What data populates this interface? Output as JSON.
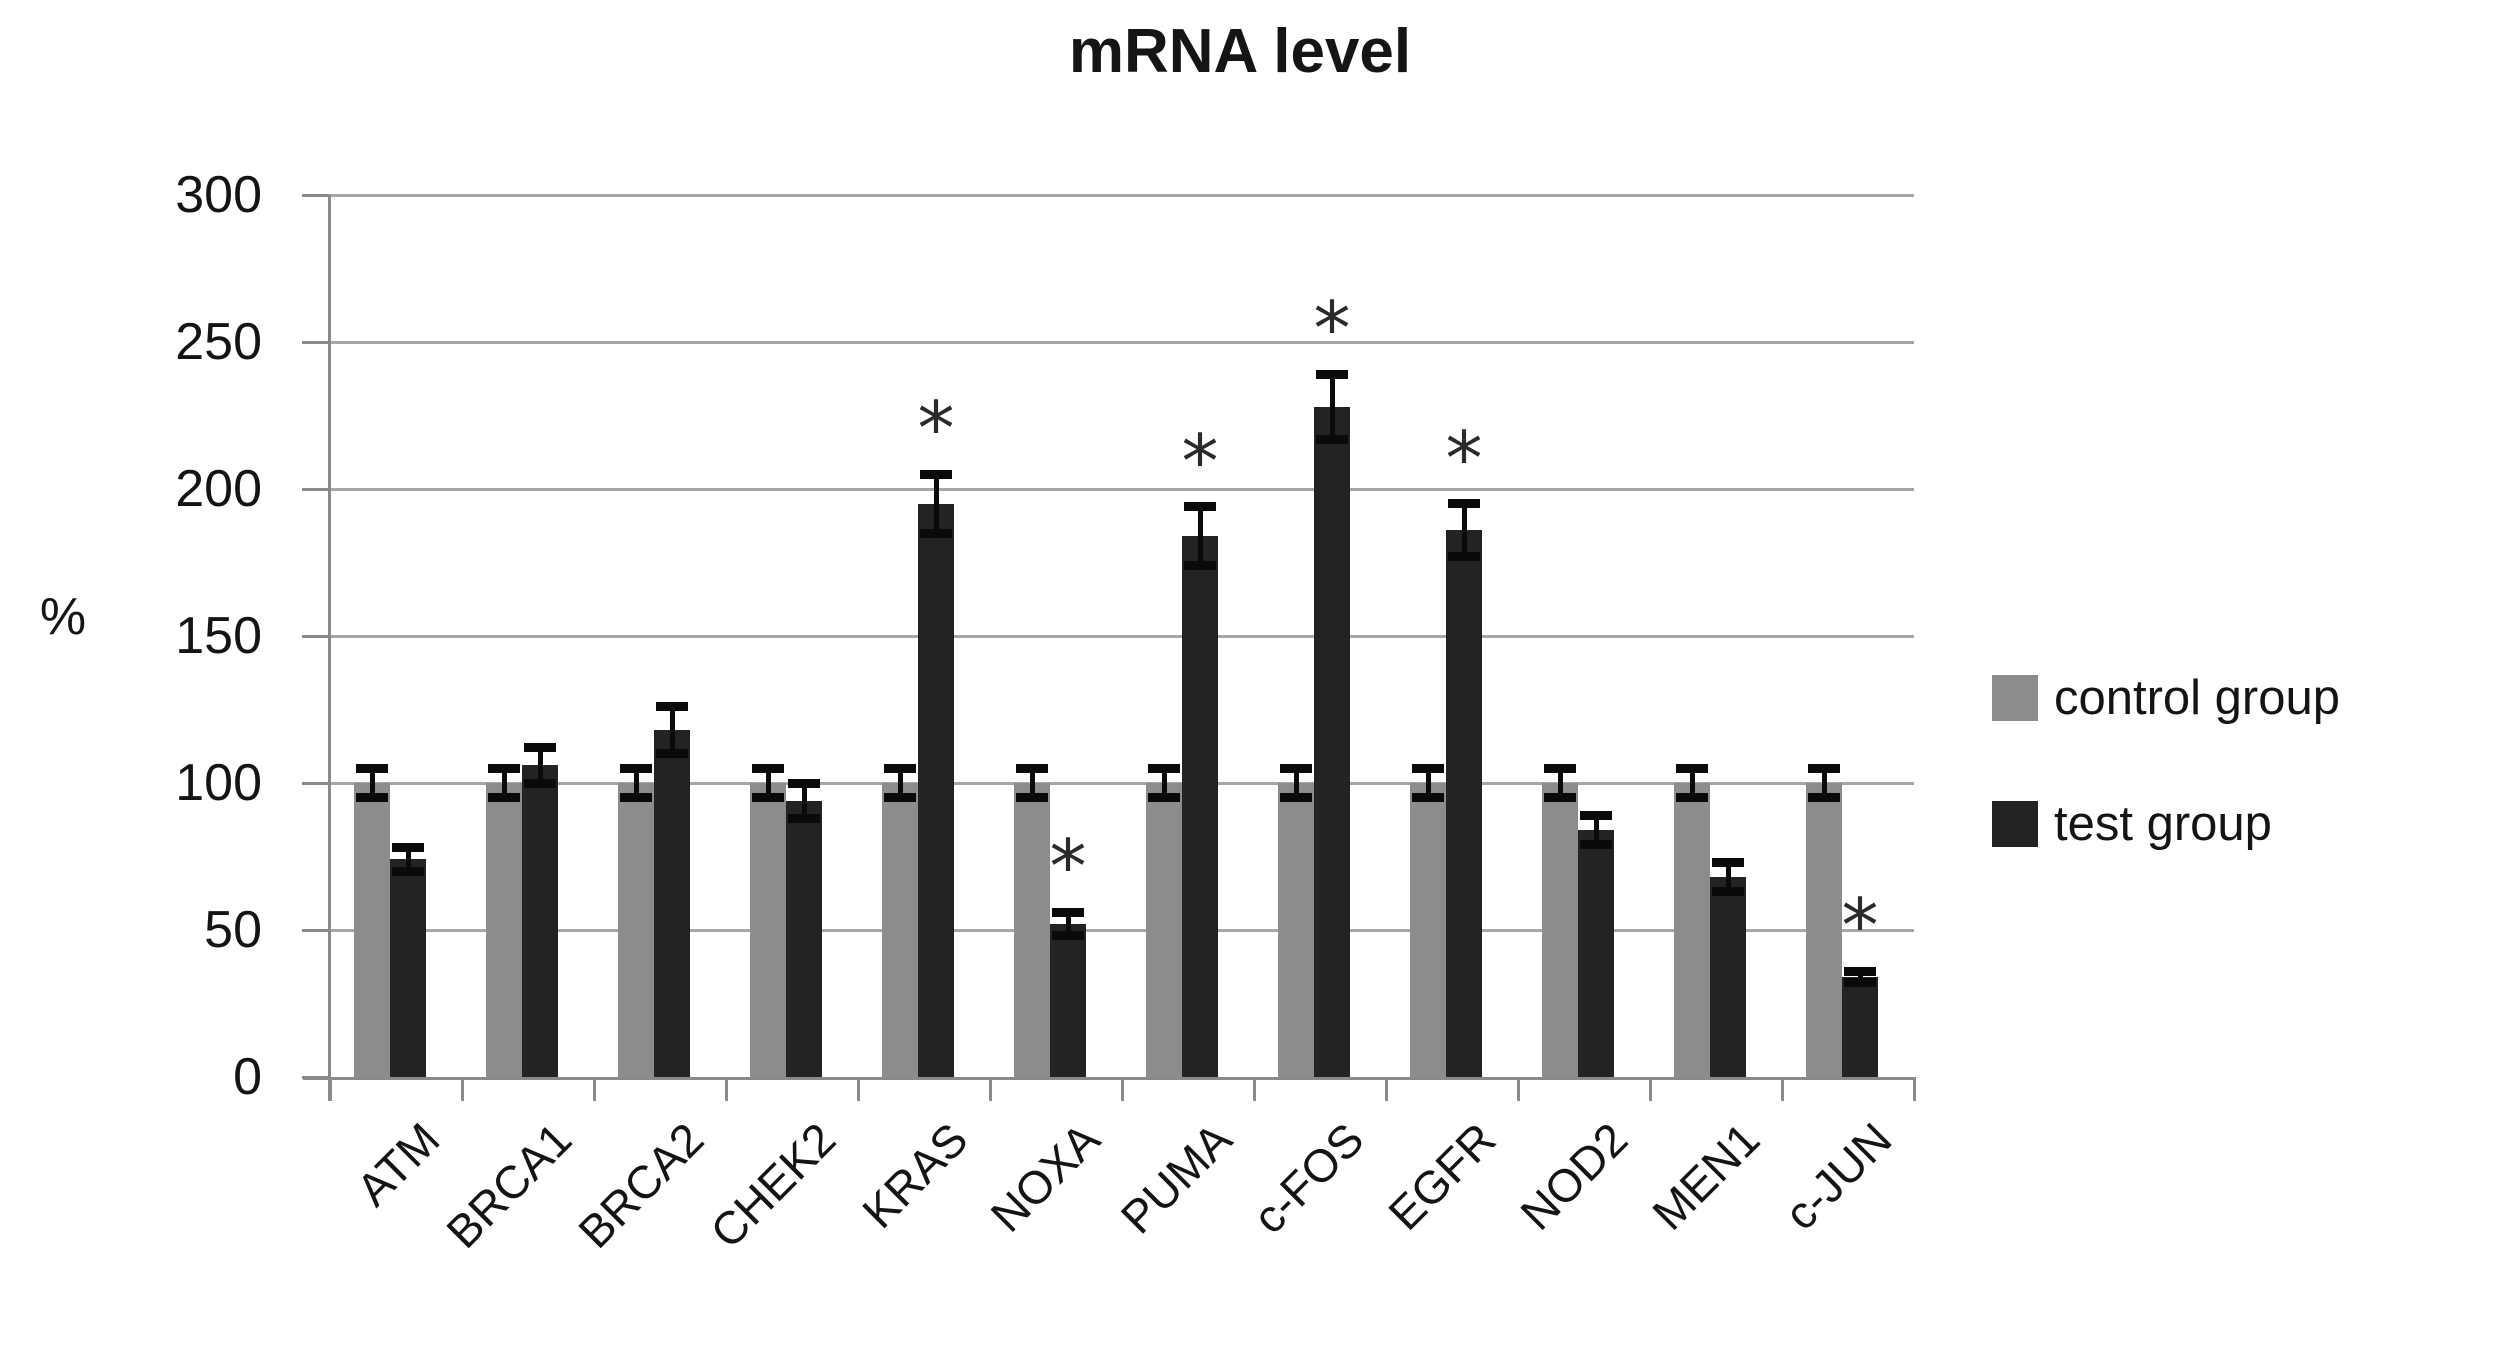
{
  "title": "mRNA level",
  "y_axis_unit": "%",
  "chart_data": {
    "type": "bar",
    "title": "mRNA level",
    "xlabel": "",
    "ylabel": "%",
    "ylim": [
      0,
      300
    ],
    "ytick_step": 50,
    "yticks": [
      0,
      50,
      100,
      150,
      200,
      250,
      300
    ],
    "grid": true,
    "legend_position": "right",
    "categories": [
      "ATM",
      "BRCA1",
      "BRCA2",
      "CHEK2",
      "KRAS",
      "NOXA",
      "PUMA",
      "c-FOS",
      "EGFR",
      "NOD2",
      "MEN1",
      "c-JUN"
    ],
    "series": [
      {
        "name": "control group",
        "color": "#8c8c8c",
        "values": [
          100,
          100,
          100,
          100,
          100,
          100,
          100,
          100,
          100,
          100,
          100,
          100
        ],
        "errors": [
          5,
          5,
          5,
          5,
          5,
          5,
          5,
          5,
          5,
          5,
          5,
          5
        ]
      },
      {
        "name": "test group",
        "color": "#232323",
        "values": [
          74,
          106,
          118,
          94,
          195,
          52,
          184,
          228,
          186,
          84,
          68,
          34
        ],
        "errors": [
          4,
          6,
          8,
          6,
          10,
          4,
          10,
          11,
          9,
          5,
          5,
          2
        ]
      }
    ],
    "significance": {
      "symbol": "*",
      "marked_categories": [
        "KRAS",
        "NOXA",
        "PUMA",
        "c-FOS",
        "EGFR",
        "c-JUN"
      ],
      "applies_to_series": "test group"
    },
    "colors": {
      "gridline": "#a7a7a7",
      "axis": "#8a8a8a",
      "error_bar": "#0a0a0a",
      "text": "#141414"
    }
  }
}
